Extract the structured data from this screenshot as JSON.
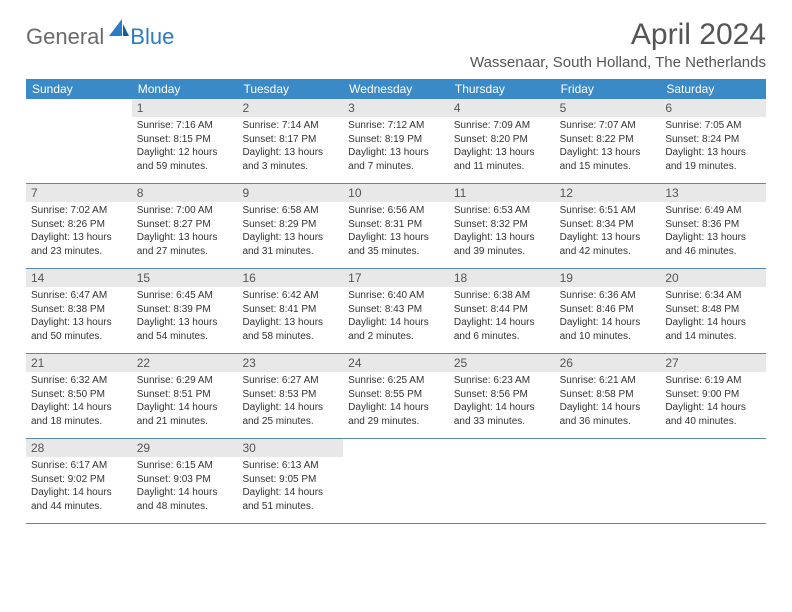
{
  "logo": {
    "general": "General",
    "blue": "Blue"
  },
  "title": "April 2024",
  "location": "Wassenaar, South Holland, The Netherlands",
  "colors": {
    "header_bg": "#3b8ac8",
    "header_text": "#ffffff",
    "daynum_bg": "#e8e8e8",
    "week_border": "#5b87a8",
    "text": "#333333",
    "title_text": "#555555",
    "logo_gray": "#6a6a6a",
    "logo_blue": "#2b7cc4"
  },
  "day_names": [
    "Sunday",
    "Monday",
    "Tuesday",
    "Wednesday",
    "Thursday",
    "Friday",
    "Saturday"
  ],
  "weeks": [
    [
      {
        "n": "",
        "sr": "",
        "ss": "",
        "dl": ""
      },
      {
        "n": "1",
        "sr": "7:16 AM",
        "ss": "8:15 PM",
        "dl": "12 hours and 59 minutes."
      },
      {
        "n": "2",
        "sr": "7:14 AM",
        "ss": "8:17 PM",
        "dl": "13 hours and 3 minutes."
      },
      {
        "n": "3",
        "sr": "7:12 AM",
        "ss": "8:19 PM",
        "dl": "13 hours and 7 minutes."
      },
      {
        "n": "4",
        "sr": "7:09 AM",
        "ss": "8:20 PM",
        "dl": "13 hours and 11 minutes."
      },
      {
        "n": "5",
        "sr": "7:07 AM",
        "ss": "8:22 PM",
        "dl": "13 hours and 15 minutes."
      },
      {
        "n": "6",
        "sr": "7:05 AM",
        "ss": "8:24 PM",
        "dl": "13 hours and 19 minutes."
      }
    ],
    [
      {
        "n": "7",
        "sr": "7:02 AM",
        "ss": "8:26 PM",
        "dl": "13 hours and 23 minutes."
      },
      {
        "n": "8",
        "sr": "7:00 AM",
        "ss": "8:27 PM",
        "dl": "13 hours and 27 minutes."
      },
      {
        "n": "9",
        "sr": "6:58 AM",
        "ss": "8:29 PM",
        "dl": "13 hours and 31 minutes."
      },
      {
        "n": "10",
        "sr": "6:56 AM",
        "ss": "8:31 PM",
        "dl": "13 hours and 35 minutes."
      },
      {
        "n": "11",
        "sr": "6:53 AM",
        "ss": "8:32 PM",
        "dl": "13 hours and 39 minutes."
      },
      {
        "n": "12",
        "sr": "6:51 AM",
        "ss": "8:34 PM",
        "dl": "13 hours and 42 minutes."
      },
      {
        "n": "13",
        "sr": "6:49 AM",
        "ss": "8:36 PM",
        "dl": "13 hours and 46 minutes."
      }
    ],
    [
      {
        "n": "14",
        "sr": "6:47 AM",
        "ss": "8:38 PM",
        "dl": "13 hours and 50 minutes."
      },
      {
        "n": "15",
        "sr": "6:45 AM",
        "ss": "8:39 PM",
        "dl": "13 hours and 54 minutes."
      },
      {
        "n": "16",
        "sr": "6:42 AM",
        "ss": "8:41 PM",
        "dl": "13 hours and 58 minutes."
      },
      {
        "n": "17",
        "sr": "6:40 AM",
        "ss": "8:43 PM",
        "dl": "14 hours and 2 minutes."
      },
      {
        "n": "18",
        "sr": "6:38 AM",
        "ss": "8:44 PM",
        "dl": "14 hours and 6 minutes."
      },
      {
        "n": "19",
        "sr": "6:36 AM",
        "ss": "8:46 PM",
        "dl": "14 hours and 10 minutes."
      },
      {
        "n": "20",
        "sr": "6:34 AM",
        "ss": "8:48 PM",
        "dl": "14 hours and 14 minutes."
      }
    ],
    [
      {
        "n": "21",
        "sr": "6:32 AM",
        "ss": "8:50 PM",
        "dl": "14 hours and 18 minutes."
      },
      {
        "n": "22",
        "sr": "6:29 AM",
        "ss": "8:51 PM",
        "dl": "14 hours and 21 minutes."
      },
      {
        "n": "23",
        "sr": "6:27 AM",
        "ss": "8:53 PM",
        "dl": "14 hours and 25 minutes."
      },
      {
        "n": "24",
        "sr": "6:25 AM",
        "ss": "8:55 PM",
        "dl": "14 hours and 29 minutes."
      },
      {
        "n": "25",
        "sr": "6:23 AM",
        "ss": "8:56 PM",
        "dl": "14 hours and 33 minutes."
      },
      {
        "n": "26",
        "sr": "6:21 AM",
        "ss": "8:58 PM",
        "dl": "14 hours and 36 minutes."
      },
      {
        "n": "27",
        "sr": "6:19 AM",
        "ss": "9:00 PM",
        "dl": "14 hours and 40 minutes."
      }
    ],
    [
      {
        "n": "28",
        "sr": "6:17 AM",
        "ss": "9:02 PM",
        "dl": "14 hours and 44 minutes."
      },
      {
        "n": "29",
        "sr": "6:15 AM",
        "ss": "9:03 PM",
        "dl": "14 hours and 48 minutes."
      },
      {
        "n": "30",
        "sr": "6:13 AM",
        "ss": "9:05 PM",
        "dl": "14 hours and 51 minutes."
      },
      {
        "n": "",
        "sr": "",
        "ss": "",
        "dl": ""
      },
      {
        "n": "",
        "sr": "",
        "ss": "",
        "dl": ""
      },
      {
        "n": "",
        "sr": "",
        "ss": "",
        "dl": ""
      },
      {
        "n": "",
        "sr": "",
        "ss": "",
        "dl": ""
      }
    ]
  ],
  "labels": {
    "sunrise": "Sunrise:",
    "sunset": "Sunset:",
    "daylight": "Daylight:"
  }
}
